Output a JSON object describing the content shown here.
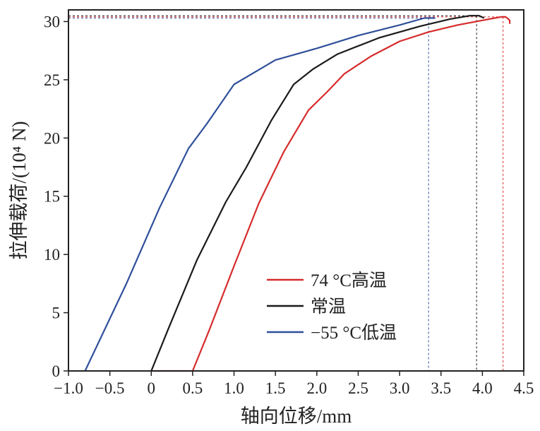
{
  "chart_data": {
    "type": "line",
    "title": "",
    "xlabel": "轴向位移/mm",
    "ylabel": "拉伸载荷/(10⁴ N)",
    "xlim": [
      -1.0,
      4.5
    ],
    "ylim": [
      0,
      31
    ],
    "xticks": [
      -1.0,
      -0.5,
      0,
      0.5,
      1.0,
      1.5,
      2.0,
      2.5,
      3.0,
      3.5,
      4.0,
      4.5
    ],
    "xtick_labels": [
      "−1.0",
      "−0.5",
      "0",
      "0.5",
      "1.0",
      "1.5",
      "2.0",
      "2.5",
      "3.0",
      "3.5",
      "4.0",
      "4.5"
    ],
    "yticks": [
      0,
      5,
      10,
      15,
      20,
      25,
      30
    ],
    "ytick_labels": [
      "0",
      "5",
      "10",
      "15",
      "20",
      "25",
      "30"
    ],
    "grid": false,
    "legend_position": "bottom-right",
    "series": [
      {
        "name": "74 °C高温",
        "color": "#d62b2b",
        "x": [
          0.0,
          0.5,
          0.7,
          1.0,
          1.3,
          1.6,
          1.9,
          2.13,
          2.33,
          2.65,
          3.0,
          3.35,
          3.7,
          4.0,
          4.15,
          4.23,
          4.28,
          4.3,
          4.33,
          4.33
        ],
        "y": [
          0.0,
          0.0,
          3.5,
          9.0,
          14.4,
          18.8,
          22.4,
          24.0,
          25.5,
          27.0,
          28.3,
          29.1,
          29.7,
          30.1,
          30.3,
          30.4,
          30.4,
          30.3,
          30.1,
          29.8
        ],
        "peak_x": 4.25,
        "peak_y": 30.4
      },
      {
        "name": "常温",
        "color": "#1a1a1a",
        "x": [
          0.0,
          0.2,
          0.55,
          0.9,
          1.15,
          1.45,
          1.72,
          1.95,
          2.25,
          2.75,
          3.25,
          3.6,
          3.85,
          3.96,
          4.02
        ],
        "y": [
          0.0,
          3.5,
          9.5,
          14.5,
          17.5,
          21.5,
          24.6,
          25.9,
          27.2,
          28.6,
          29.6,
          30.2,
          30.5,
          30.5,
          30.3
        ],
        "peak_x": 3.93,
        "peak_y": 30.5
      },
      {
        "name": "−55 °C低温",
        "color": "#2f4f9a",
        "x": [
          -0.8,
          -0.3,
          0.1,
          0.45,
          0.67,
          1.0,
          1.5,
          2.0,
          2.5,
          3.0,
          3.3,
          3.4,
          3.43
        ],
        "y": [
          0.0,
          7.5,
          14.0,
          19.1,
          21.2,
          24.6,
          26.7,
          27.7,
          28.8,
          29.7,
          30.3,
          30.3,
          30.3
        ],
        "peak_x": 3.35,
        "peak_y": 30.3
      }
    ]
  }
}
